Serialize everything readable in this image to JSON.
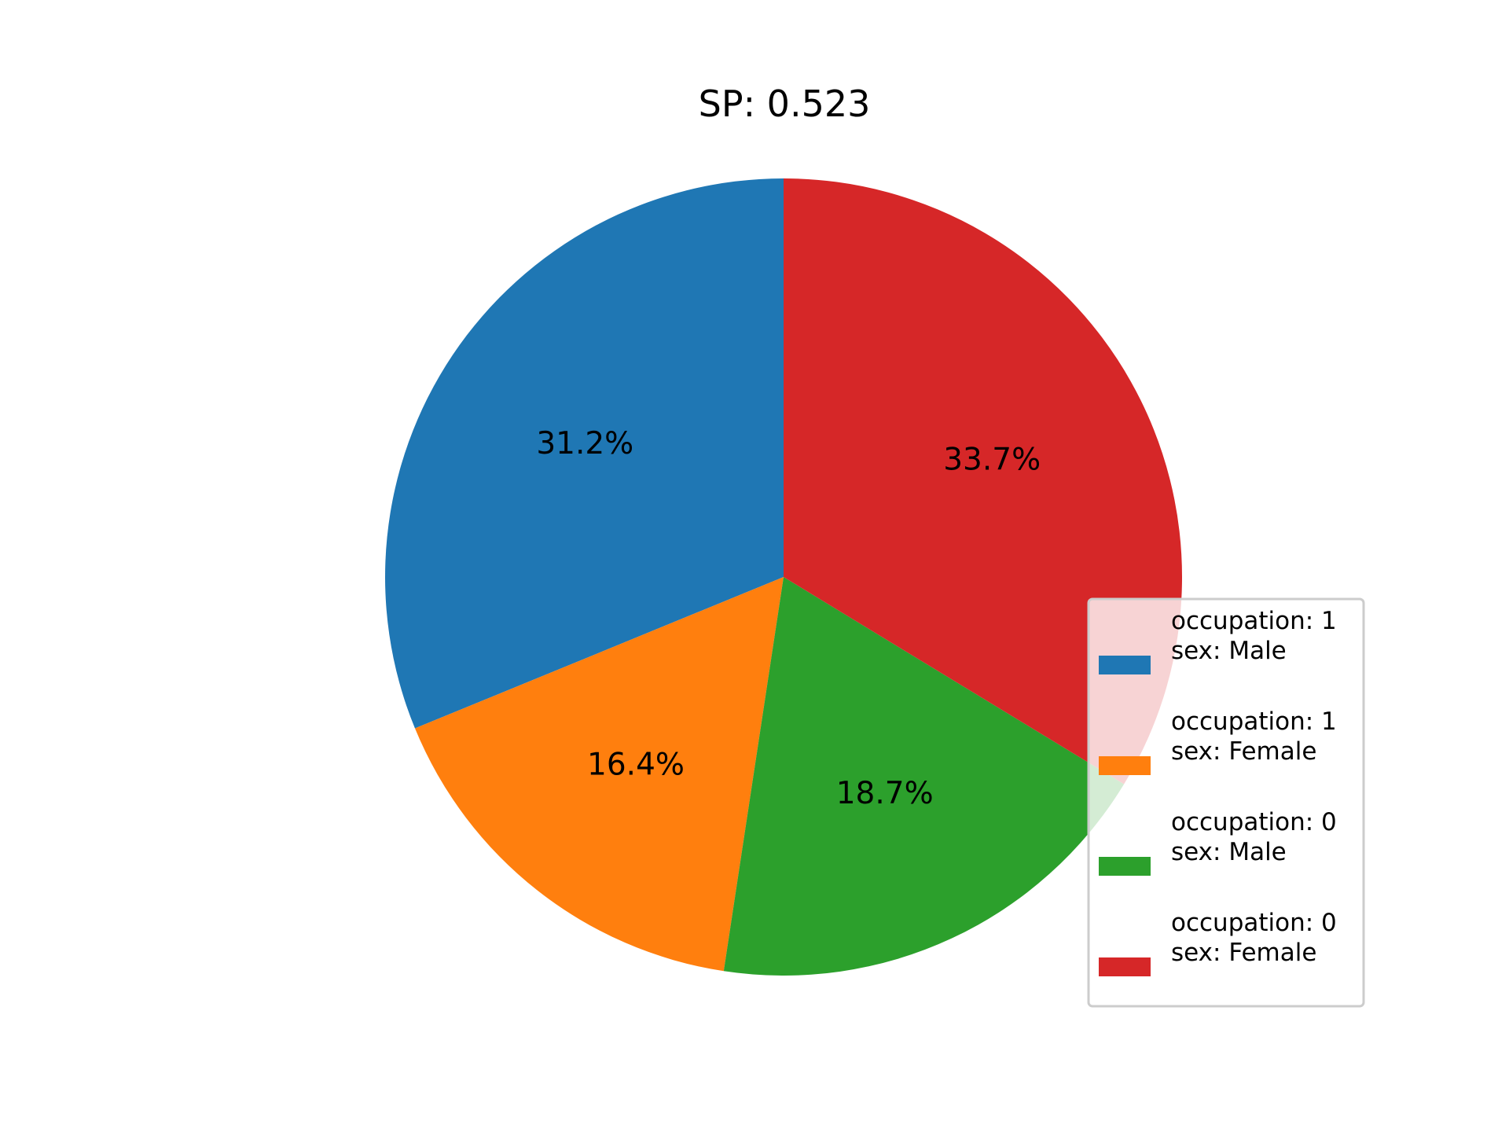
{
  "chart_data": {
    "type": "pie",
    "title": "SP: 0.523",
    "start_angle_deg": 90,
    "direction": "counterclockwise",
    "legend_position": "lower-right",
    "slices": [
      {
        "label_lines": [
          "occupation: 1",
          "sex: Male"
        ],
        "value": 31.2,
        "display": "31.2%",
        "color": "#1f77b4"
      },
      {
        "label_lines": [
          "occupation: 1",
          "sex: Female"
        ],
        "value": 16.4,
        "display": "16.4%",
        "color": "#ff7f0e"
      },
      {
        "label_lines": [
          "occupation: 0",
          "sex: Male"
        ],
        "value": 18.7,
        "display": "18.7%",
        "color": "#2ca02c"
      },
      {
        "label_lines": [
          "occupation: 0",
          "sex: Female"
        ],
        "value": 33.7,
        "display": "33.7%",
        "color": "#d62728"
      }
    ]
  }
}
